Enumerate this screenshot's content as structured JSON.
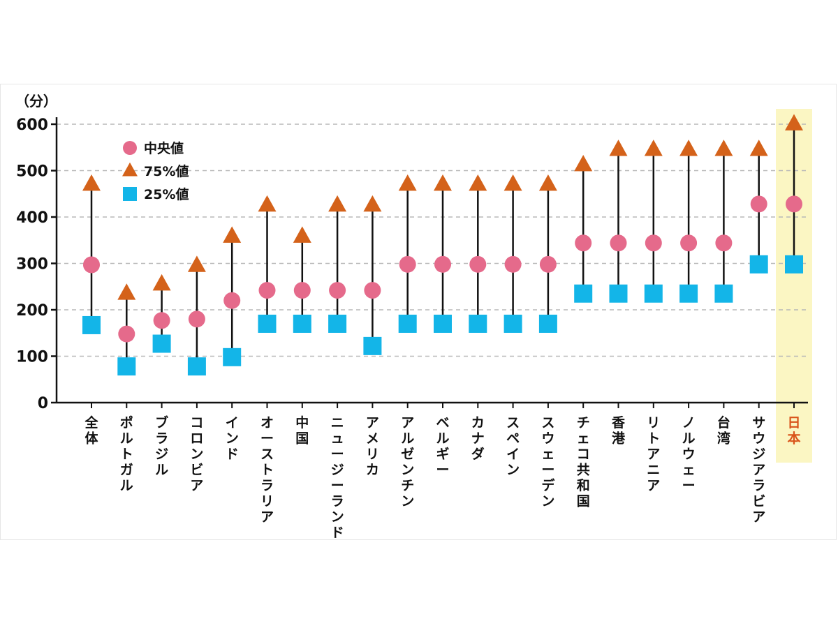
{
  "chart_data": {
    "type": "scatter",
    "ylabel": "（分）",
    "ylim": [
      0,
      600
    ],
    "yticks": [
      0,
      100,
      200,
      300,
      400,
      500,
      600
    ],
    "grid": true,
    "legend_position": "top-left",
    "highlight_category": "日本",
    "highlight_color": "#fbf6c3",
    "highlight_label_color": "#d9541a",
    "categories": [
      "全体",
      "ポルトガル",
      "ブラジル",
      "コロンビア",
      "インド",
      "オーストラリア",
      "中国",
      "ニュージーランド",
      "アメリカ",
      "アルゼンチン",
      "ベルギー",
      "カナダ",
      "スペイン",
      "スウェーデン",
      "チェコ共和国",
      "香港",
      "リトアニア",
      "ノルウェー",
      "台湾",
      "サウジアラビア",
      "日本"
    ],
    "series": [
      {
        "name": "中央値",
        "marker": "circle",
        "color": "#e56a8b",
        "values": [
          297,
          148,
          177,
          180,
          220,
          242,
          242,
          242,
          242,
          298,
          298,
          298,
          298,
          298,
          344,
          344,
          344,
          344,
          344,
          428,
          428
        ]
      },
      {
        "name": "75%値",
        "marker": "triangle",
        "color": "#d4621a",
        "values": [
          470,
          235,
          255,
          295,
          358,
          425,
          358,
          425,
          425,
          470,
          470,
          470,
          470,
          470,
          512,
          545,
          545,
          545,
          545,
          545,
          600
        ]
      },
      {
        "name": "25%値",
        "marker": "square",
        "color": "#13b5e8",
        "values": [
          167,
          78,
          127,
          78,
          98,
          170,
          170,
          170,
          122,
          170,
          170,
          170,
          170,
          170,
          235,
          235,
          235,
          235,
          235,
          298,
          298
        ]
      }
    ]
  }
}
